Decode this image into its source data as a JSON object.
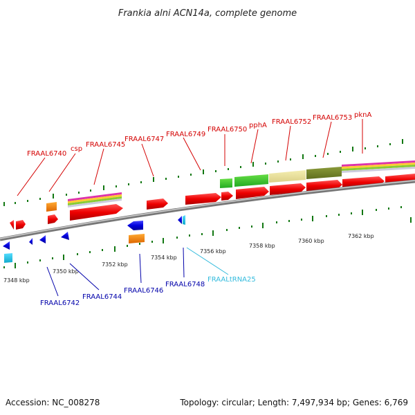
{
  "title": "Frankia alni ACN14a, complete genome",
  "footer": {
    "accession": "Accession: NC_008278",
    "summary": "Topology: circular; Length: 7,497,934 bp; Genes: 6,769"
  },
  "colors": {
    "forward_gene": "#ee0000",
    "reverse_gene": "#0000dd",
    "rna_gene": "#ff8800",
    "trna": "#22bbdd",
    "forward_label": "#d40000",
    "reverse_label": "#0000aa",
    "tick": "#117711",
    "backbone": "#888888"
  },
  "kbp_ticks": [
    "7348 kbp",
    "7350 kbp",
    "7352 kbp",
    "7354 kbp",
    "7356 kbp",
    "7358 kbp",
    "7360 kbp",
    "7362 kbp"
  ],
  "forward_labels": [
    "FRAAL6740",
    "csp",
    "FRAAL6745",
    "FRAAL6747",
    "FRAAL6749",
    "FRAAL6750",
    "pphA",
    "FRAAL6752",
    "FRAAL6753",
    "pknA"
  ],
  "reverse_labels": [
    "FRAAL6742",
    "FRAAL6744",
    "FRAAL6746",
    "FRAAL6748"
  ],
  "trna_labels": [
    "FRAALtRNA25"
  ]
}
